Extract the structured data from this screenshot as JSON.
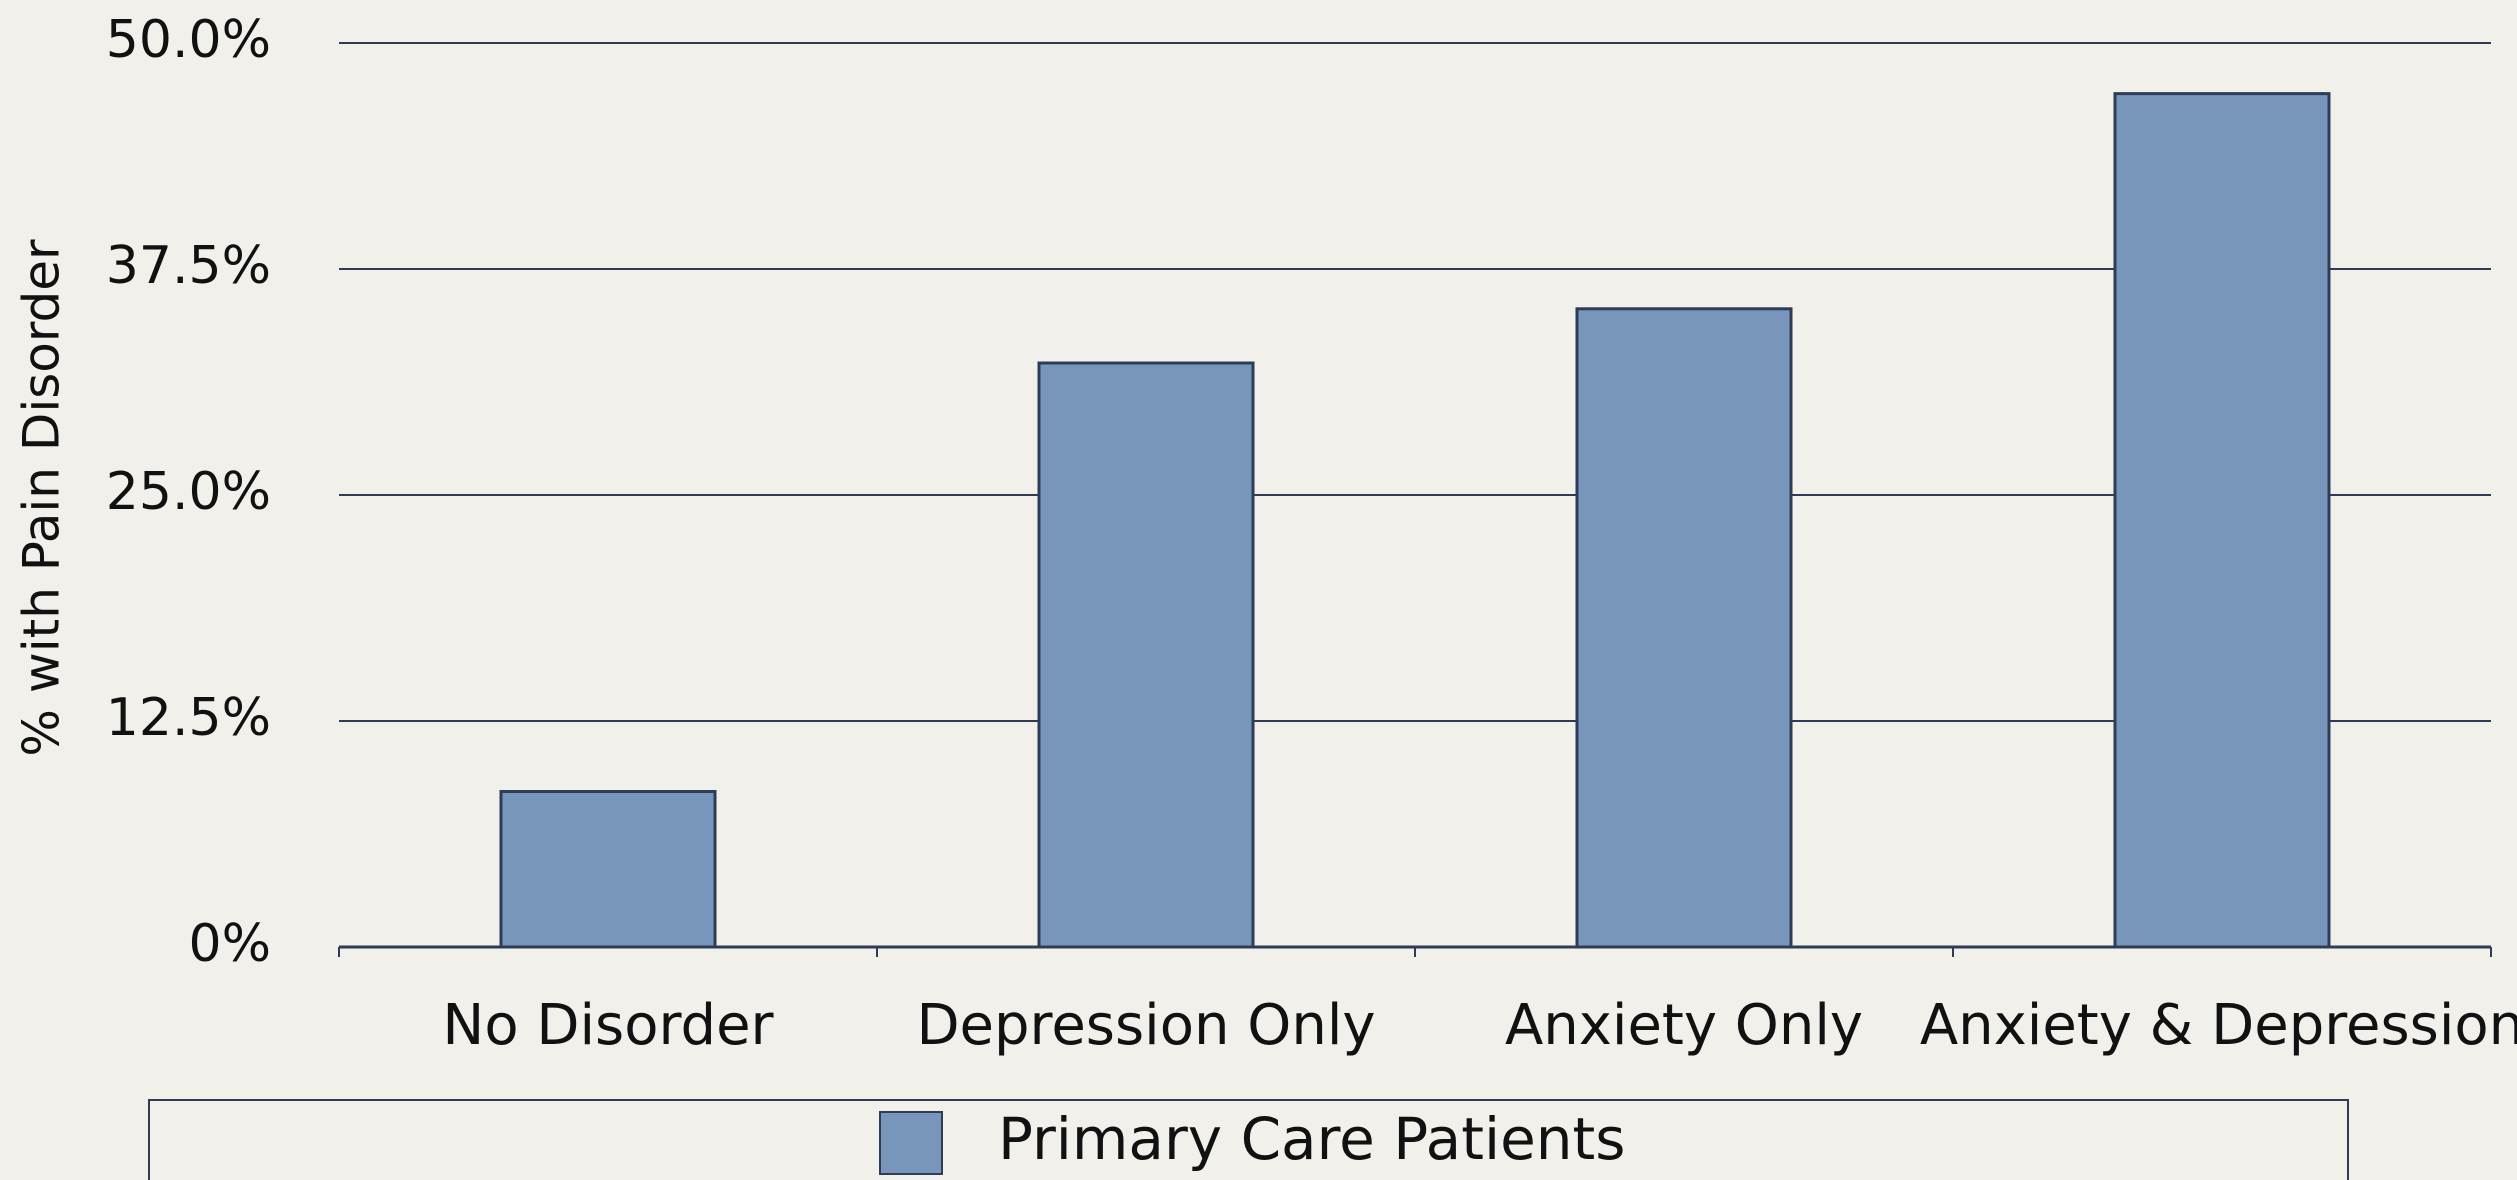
{
  "chart_data": {
    "type": "bar",
    "y_label": "% with Pain Disorder",
    "categories": [
      "No Disorder",
      "Depression Only",
      "Anxiety Only",
      "Anxiety & Depression"
    ],
    "series": [
      {
        "name": "Primary Care Patients",
        "color": "#7896bc",
        "values": [
          8.6,
          32.3,
          35.3,
          47.2
        ]
      }
    ],
    "ylim": [
      0,
      50
    ],
    "yticks": [
      {
        "value": 0,
        "label": "0%"
      },
      {
        "value": 12.5,
        "label": "12.5%"
      },
      {
        "value": 25,
        "label": "25.0%"
      },
      {
        "value": 37.5,
        "label": "37.5%"
      },
      {
        "value": 50,
        "label": "50.0%"
      }
    ],
    "grid": true,
    "legend": "bottom"
  }
}
